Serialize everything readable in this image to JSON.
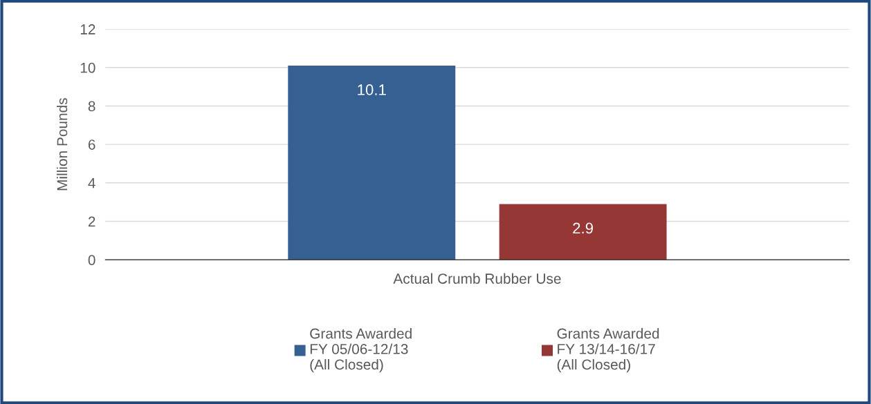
{
  "chart_data": {
    "type": "bar",
    "ylabel": "Million Pounds",
    "categories": [
      "Actual Crumb Rubber Use"
    ],
    "series": [
      {
        "name": "Grants Awarded\nFY 05/06-12/13\n(All Closed)",
        "color": "#366092",
        "values": [
          10.1
        ]
      },
      {
        "name": "Grants Awarded\nFY 13/14-16/17\n(All Closed)",
        "color": "#953735",
        "values": [
          2.9
        ]
      }
    ],
    "ylim": [
      0,
      12
    ],
    "yticks": [
      0,
      2,
      4,
      6,
      8,
      10,
      12
    ],
    "grid": "y",
    "legend": "bottom",
    "data_labels": true
  }
}
